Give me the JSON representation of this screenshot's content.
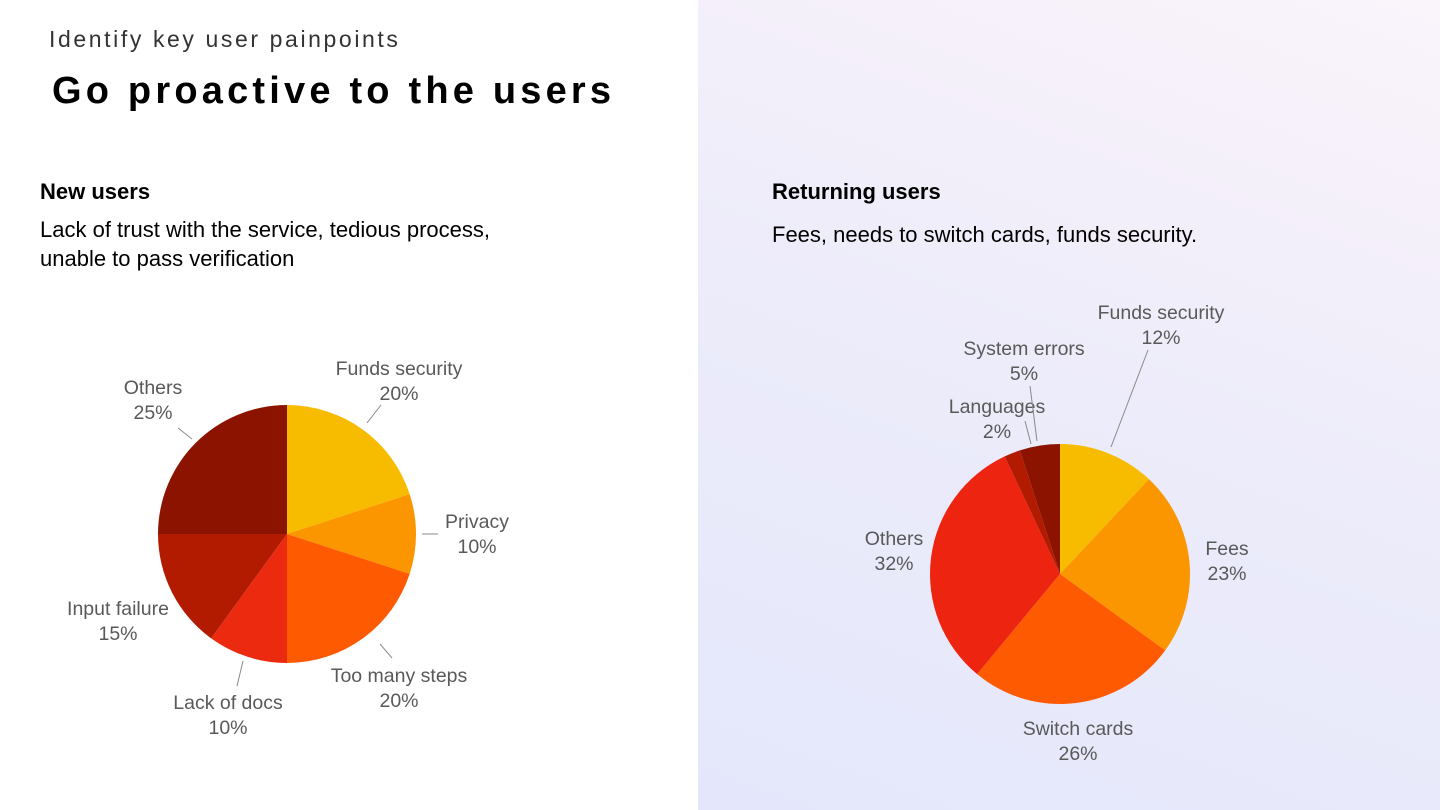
{
  "header": {
    "kicker": "Identify key user painpoints",
    "title": "Go proactive to the users"
  },
  "new_users": {
    "heading": "New users",
    "description": "Lack of trust with the service, tedious process, unable to pass verification"
  },
  "returning_users": {
    "heading": "Returning users",
    "description": "Fees, needs to switch cards, funds security."
  },
  "chart_data": [
    {
      "type": "pie",
      "title": "New users",
      "categories": [
        "Funds security",
        "Privacy",
        "Too many steps",
        "Lack of docs",
        "Input failure",
        "Others"
      ],
      "values": [
        20,
        10,
        20,
        10,
        15,
        25
      ],
      "value_labels": [
        "20%",
        "10%",
        "20%",
        "10%",
        "15%",
        "25%"
      ],
      "colors": [
        "#f7bb00",
        "#fb9500",
        "#fe5a02",
        "#ec2a0f",
        "#b31b00",
        "#8c1300"
      ],
      "start": "12 o'clock",
      "direction": "clockwise"
    },
    {
      "type": "pie",
      "title": "Returning users",
      "categories": [
        "Funds security",
        "Fees",
        "Switch cards",
        "Others",
        "Languages",
        "System errors"
      ],
      "values": [
        12,
        23,
        26,
        32,
        2,
        5
      ],
      "value_labels": [
        "12%",
        "23%",
        "26%",
        "32%",
        "2%",
        "5%"
      ],
      "colors": [
        "#f7bb00",
        "#fb9500",
        "#fe5a02",
        "#ec2410",
        "#b31b00",
        "#8c1300"
      ],
      "start": "12 o'clock",
      "direction": "clockwise"
    }
  ]
}
